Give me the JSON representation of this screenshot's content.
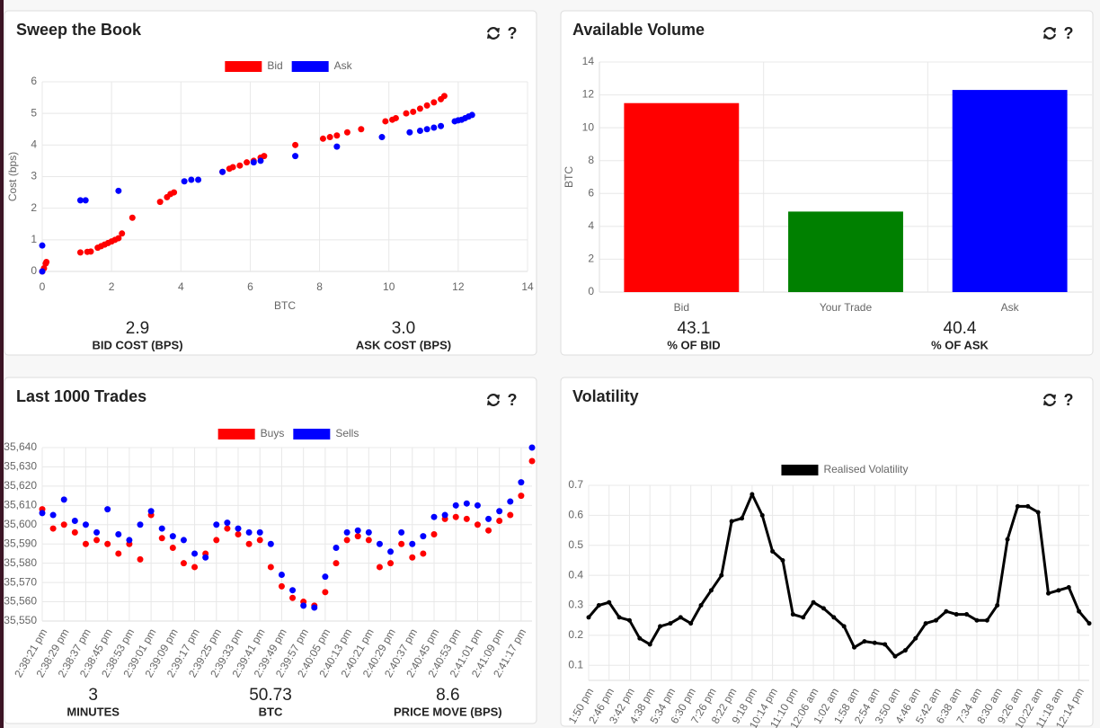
{
  "help_label": "?",
  "chart_data": [
    {
      "type": "scatter",
      "title": "Sweep the Book",
      "x_label": "BTC",
      "y_label": "Cost (bps)",
      "xlim": [
        0,
        14
      ],
      "xticks": [
        0,
        2,
        4,
        6,
        8,
        10,
        12,
        14
      ],
      "ylim": [
        0,
        6
      ],
      "yticks": [
        0,
        1,
        2,
        3,
        4,
        5,
        6
      ],
      "grid": true,
      "legend": "top",
      "series": [
        {
          "name": "Bid",
          "color": "#ff0000",
          "x": [
            0,
            0.05,
            0.1,
            0.12,
            1.1,
            1.3,
            1.4,
            1.6,
            1.7,
            1.8,
            1.9,
            2.0,
            2.1,
            2.2,
            2.3,
            2.6,
            3.4,
            3.6,
            3.7,
            3.8,
            5.2,
            5.4,
            5.5,
            5.7,
            5.9,
            6.1,
            6.3,
            6.4,
            7.3,
            8.1,
            8.3,
            8.5,
            8.8,
            9.2,
            9.9,
            10.1,
            10.2,
            10.5,
            10.7,
            10.9,
            11.1,
            11.3,
            11.5,
            11.6
          ],
          "values": [
            0,
            0.1,
            0.25,
            0.3,
            0.6,
            0.62,
            0.63,
            0.75,
            0.8,
            0.85,
            0.9,
            0.95,
            1.0,
            1.05,
            1.2,
            1.7,
            2.2,
            2.35,
            2.45,
            2.5,
            3.15,
            3.25,
            3.3,
            3.35,
            3.45,
            3.5,
            3.6,
            3.65,
            4.0,
            4.2,
            4.25,
            4.3,
            4.4,
            4.5,
            4.75,
            4.8,
            4.85,
            5.0,
            5.05,
            5.15,
            5.25,
            5.35,
            5.45,
            5.55
          ]
        },
        {
          "name": "Ask",
          "color": "#0000ff",
          "x": [
            0,
            0,
            1.1,
            1.25,
            2.2,
            4.1,
            4.3,
            4.5,
            5.2,
            6.1,
            6.3,
            7.3,
            8.5,
            9.8,
            10.6,
            10.9,
            11.1,
            11.3,
            11.5,
            11.9,
            12.0,
            12.1,
            12.2,
            12.3,
            12.4
          ],
          "values": [
            0,
            0.82,
            2.25,
            2.25,
            2.55,
            2.85,
            2.9,
            2.9,
            3.15,
            3.45,
            3.5,
            3.65,
            3.95,
            4.25,
            4.4,
            4.45,
            4.5,
            4.55,
            4.6,
            4.75,
            4.78,
            4.8,
            4.85,
            4.9,
            4.95
          ]
        }
      ],
      "stats": [
        {
          "value": "2.9",
          "caption": "BID COST (BPS)"
        },
        {
          "value": "3.0",
          "caption": "ASK COST (BPS)"
        }
      ]
    },
    {
      "type": "bar",
      "title": "Available Volume",
      "y_label": "BTC",
      "categories": [
        "Bid",
        "Your Trade",
        "Ask"
      ],
      "values": [
        11.5,
        4.9,
        12.3
      ],
      "colors": [
        "#ff0000",
        "#008000",
        "#0000ff"
      ],
      "ylim": [
        0,
        14
      ],
      "yticks": [
        0,
        2,
        4,
        6,
        8,
        10,
        12,
        14
      ],
      "grid": true,
      "stats": [
        {
          "value": "43.1",
          "caption": "% OF BID"
        },
        {
          "value": "40.4",
          "caption": "% OF ASK"
        }
      ]
    },
    {
      "type": "scatter",
      "title": "Last 1000 Trades",
      "categories": [
        "2:38:21 pm",
        null,
        "2:38:29 pm",
        null,
        "2:38:37 pm",
        null,
        "2:38:45 pm",
        null,
        "2:38:53 pm",
        null,
        "2:39:01 pm",
        null,
        "2:39:09 pm",
        null,
        "2:39:17 pm",
        null,
        "2:39:25 pm",
        null,
        "2:39:33 pm",
        null,
        "2:39:41 pm",
        null,
        "2:39:49 pm",
        null,
        "2:39:57 pm",
        null,
        "2:40:05 pm",
        null,
        "2:40:13 pm",
        null,
        "2:40:21 pm",
        null,
        "2:40:29 pm",
        null,
        "2:40:37 pm",
        null,
        "2:40:45 pm",
        null,
        "2:40:53 pm",
        null,
        "2:41:01 pm",
        null,
        "2:41:09 pm",
        null,
        "2:41:17 pm",
        null
      ],
      "ylim": [
        35550,
        35640
      ],
      "yticks": [
        {
          "value": 35550,
          "label": "35,550"
        },
        {
          "value": 35560,
          "label": "35,560"
        },
        {
          "value": 35570,
          "label": "35,570"
        },
        {
          "value": 35580,
          "label": "35,580"
        },
        {
          "value": 35590,
          "label": "35,590"
        },
        {
          "value": 35600,
          "label": "35,600"
        },
        {
          "value": 35610,
          "label": "35,610"
        },
        {
          "value": 35620,
          "label": "35,620"
        },
        {
          "value": 35630,
          "label": "35,630"
        },
        {
          "value": 35640,
          "label": "35,640"
        }
      ],
      "grid": true,
      "legend": "top",
      "series": [
        {
          "name": "Buys",
          "color": "#ff0000",
          "values": [
            35608,
            35598,
            35600,
            35596,
            35590,
            35592,
            35590,
            35585,
            35590,
            35582,
            35605,
            35593,
            35588,
            35580,
            35578,
            35585,
            35592,
            35598,
            35595,
            35590,
            35592,
            35578,
            35568,
            35562,
            35560,
            35558,
            35565,
            35580,
            35592,
            35594,
            35592,
            35578,
            35580,
            35590,
            35583,
            35585,
            35595,
            35603,
            35604,
            35603,
            35600,
            35597,
            35602,
            35605,
            35615,
            35633
          ]
        },
        {
          "name": "Sells",
          "color": "#0000ff",
          "values": [
            35606,
            35605,
            35613,
            35602,
            35600,
            35596,
            35608,
            35595,
            35592,
            35600,
            35607,
            35598,
            35594,
            35592,
            35585,
            35583,
            35600,
            35601,
            35598,
            35596,
            35596,
            35590,
            35574,
            35566,
            35558,
            35557,
            35573,
            35588,
            35596,
            35597,
            35596,
            35590,
            35586,
            35596,
            35590,
            35594,
            35604,
            35605,
            35610,
            35611,
            35610,
            35603,
            35607,
            35612,
            35622,
            35640
          ]
        }
      ],
      "stats": [
        {
          "value": "3",
          "caption": "MINUTES"
        },
        {
          "value": "50.73",
          "caption": "BTC"
        },
        {
          "value": "8.6",
          "caption": "PRICE MOVE (BPS)"
        }
      ]
    },
    {
      "type": "line",
      "title": "Volatility",
      "categories": [
        "1:50 pm",
        null,
        "2:46 pm",
        null,
        "3:42 pm",
        null,
        "4:38 pm",
        null,
        "5:34 pm",
        null,
        "6:30 pm",
        null,
        "7:26 pm",
        null,
        "8:22 pm",
        null,
        "9:18 pm",
        null,
        "10:14 pm",
        null,
        "11:10 pm",
        null,
        "12:06 am",
        null,
        "1:02 am",
        null,
        "1:58 am",
        null,
        "2:54 am",
        null,
        "3:50 am",
        null,
        "4:46 am",
        null,
        "5:42 am",
        null,
        "6:38 am",
        null,
        "7:34 am",
        null,
        "8:30 am",
        null,
        "9:26 am",
        null,
        "10:22 am",
        null,
        "11:18 am",
        null,
        "12:14 pm",
        null
      ],
      "ylim": [
        0.05,
        0.7
      ],
      "yticks": [
        0.1,
        0.2,
        0.3,
        0.4,
        0.5,
        0.6,
        0.7
      ],
      "grid": true,
      "legend": "top",
      "series": [
        {
          "name": "Realised Volatility",
          "color": "#000000",
          "values": [
            0.26,
            0.3,
            0.31,
            0.26,
            0.25,
            0.19,
            0.17,
            0.23,
            0.24,
            0.26,
            0.24,
            0.3,
            0.35,
            0.4,
            0.58,
            0.59,
            0.67,
            0.6,
            0.48,
            0.45,
            0.27,
            0.26,
            0.31,
            0.29,
            0.26,
            0.23,
            0.16,
            0.18,
            0.175,
            0.17,
            0.13,
            0.15,
            0.19,
            0.24,
            0.25,
            0.28,
            0.27,
            0.27,
            0.25,
            0.25,
            0.3,
            0.52,
            0.63,
            0.63,
            0.61,
            0.34,
            0.35,
            0.36,
            0.28,
            0.24
          ]
        }
      ]
    }
  ]
}
